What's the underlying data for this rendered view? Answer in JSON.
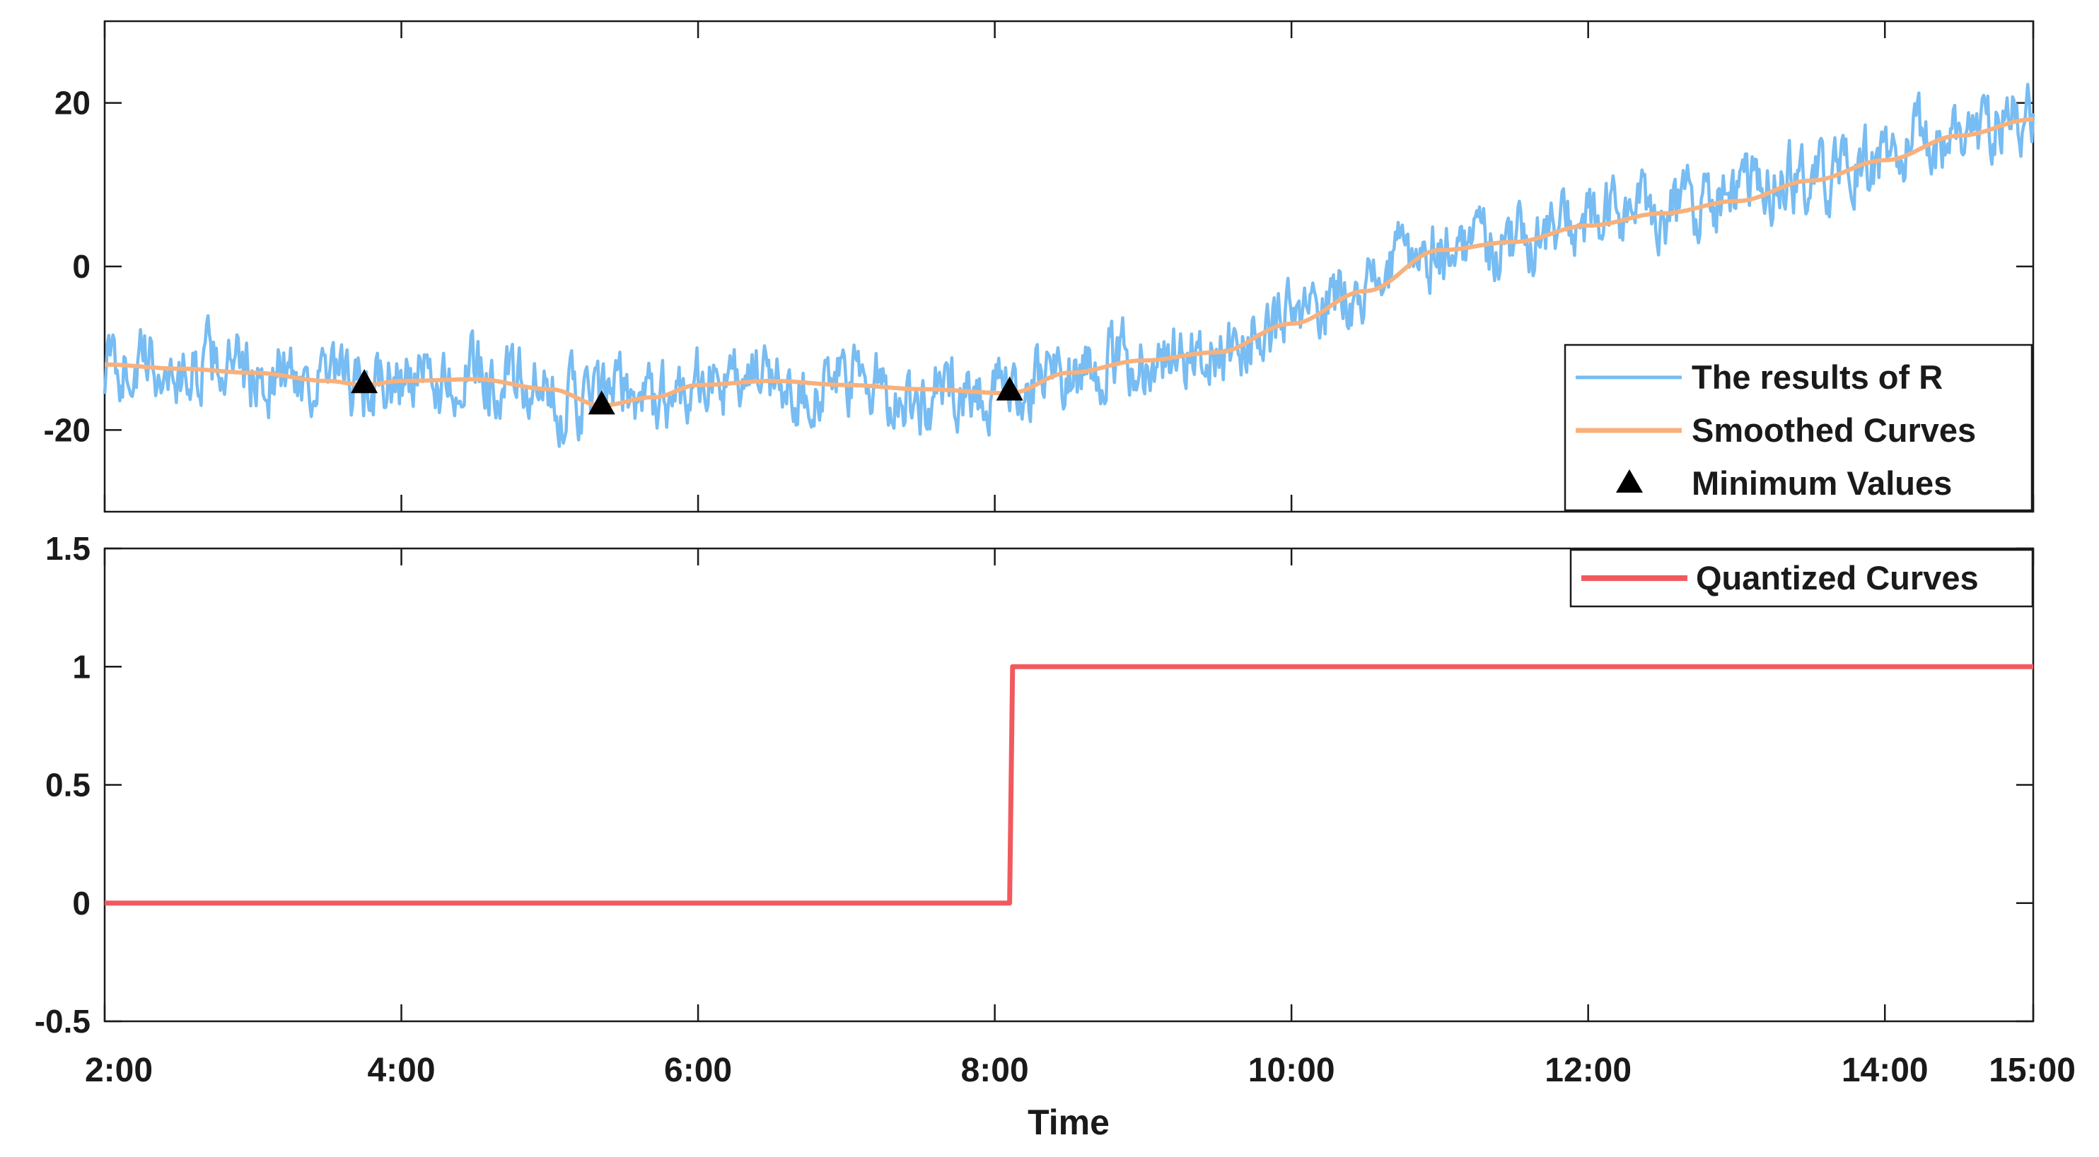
{
  "chart_data": [
    {
      "id": "top",
      "type": "line",
      "x_range_hours": [
        2,
        15
      ],
      "ylim": [
        -30,
        30
      ],
      "yticks": [
        -20,
        0,
        20
      ],
      "ytick_labels": [
        "-20",
        "0",
        "20"
      ],
      "series": [
        {
          "name": "The results of R",
          "kind": "noisy",
          "color": "#77bcf2",
          "x": [
            2.0,
            2.25,
            2.5,
            2.75,
            3.0,
            3.25,
            3.5,
            3.75,
            4.0,
            4.25,
            4.5,
            4.75,
            5.0,
            5.25,
            5.5,
            5.75,
            6.0,
            6.25,
            6.5,
            6.75,
            7.0,
            7.25,
            7.5,
            7.75,
            8.0,
            8.25,
            8.5,
            8.75,
            9.0,
            9.25,
            9.5,
            9.75,
            10.0,
            10.25,
            10.5,
            10.75,
            11.0,
            11.25,
            11.5,
            11.75,
            12.0,
            12.25,
            12.5,
            12.75,
            13.0,
            13.25,
            13.5,
            13.75,
            14.0,
            14.25,
            14.5,
            14.75,
            15.0
          ],
          "values": [
            -13,
            -11,
            -15,
            -9,
            -16,
            -12,
            -14,
            -17,
            -13,
            -15,
            -11,
            -14,
            -19,
            -16,
            -13,
            -18,
            -11,
            -15,
            -13,
            -17,
            -12,
            -15,
            -20,
            -13,
            -16,
            -14,
            -12,
            -10,
            -12,
            -8,
            -12,
            -6,
            -8,
            -2,
            -1,
            3,
            2,
            5,
            3,
            6,
            5,
            9,
            7,
            10,
            9,
            12,
            11,
            10,
            14,
            17,
            15,
            20,
            18
          ]
        },
        {
          "name": "Smoothed Curves",
          "kind": "smooth",
          "color": "#f8b07c",
          "x": [
            2.0,
            2.5,
            3.0,
            3.5,
            3.75,
            4.0,
            4.5,
            5.0,
            5.35,
            5.7,
            6.0,
            6.5,
            7.0,
            7.5,
            8.1,
            8.5,
            9.0,
            9.5,
            10.0,
            10.5,
            11.0,
            11.5,
            12.0,
            12.5,
            13.0,
            13.5,
            14.0,
            14.5,
            15.0
          ],
          "values": [
            -12,
            -12.5,
            -13,
            -14,
            -14.5,
            -14,
            -13.8,
            -15,
            -17,
            -16,
            -14.5,
            -14,
            -14.5,
            -15,
            -15.5,
            -13,
            -11.5,
            -10.5,
            -7,
            -3,
            2,
            3,
            5,
            6.5,
            8,
            10.5,
            13,
            16,
            18
          ]
        }
      ],
      "minima": {
        "name": "Minimum Values",
        "x": [
          3.75,
          5.35,
          8.1
        ],
        "values": [
          -14.2,
          -16.8,
          -15.1
        ]
      }
    },
    {
      "id": "bottom",
      "type": "line",
      "x_range_hours": [
        2,
        15
      ],
      "ylim": [
        -0.5,
        1.5
      ],
      "yticks": [
        -0.5,
        0,
        0.5,
        1,
        1.5
      ],
      "ytick_labels": [
        "-0.5",
        "0",
        "0.5",
        "1",
        "1.5"
      ],
      "series": [
        {
          "name": "Quantized Curves",
          "color": "#f05a5f",
          "x": [
            2.0,
            8.1,
            8.12,
            15.0
          ],
          "values": [
            0,
            0,
            1,
            1
          ]
        }
      ]
    }
  ],
  "xticks": [
    2,
    4,
    6,
    8,
    10,
    12,
    14,
    15
  ],
  "xtick_labels": [
    "2:00",
    "4:00",
    "6:00",
    "8:00",
    "10:00",
    "12:00",
    "14:00",
    "15:00"
  ],
  "xlabel": "Time",
  "legend_top": [
    "The results of R",
    "Smoothed Curves",
    "Minimum Values"
  ],
  "legend_bottom": [
    "Quantized Curves"
  ]
}
